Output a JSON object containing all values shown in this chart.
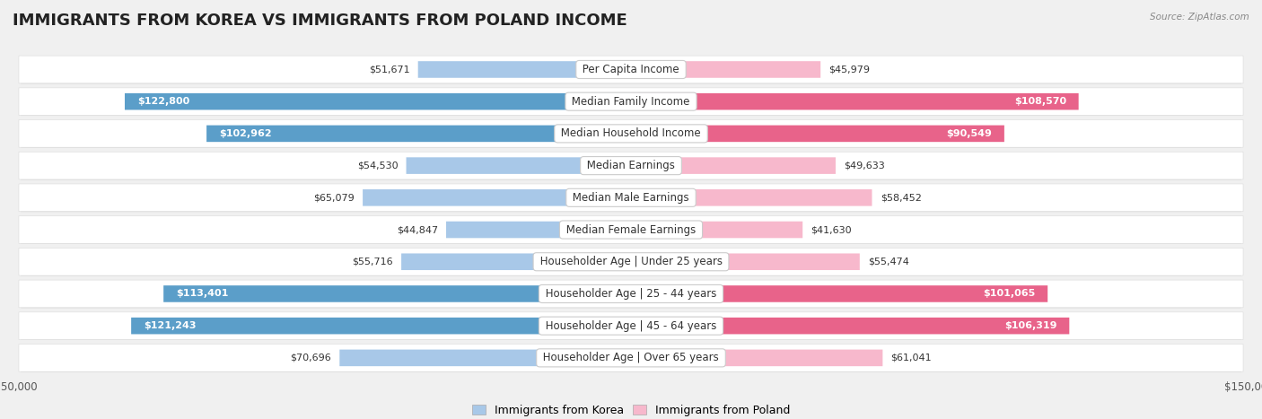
{
  "title": "IMMIGRANTS FROM KOREA VS IMMIGRANTS FROM POLAND INCOME",
  "source": "Source: ZipAtlas.com",
  "categories": [
    "Per Capita Income",
    "Median Family Income",
    "Median Household Income",
    "Median Earnings",
    "Median Male Earnings",
    "Median Female Earnings",
    "Householder Age | Under 25 years",
    "Householder Age | 25 - 44 years",
    "Householder Age | 45 - 64 years",
    "Householder Age | Over 65 years"
  ],
  "korea_values": [
    51671,
    122800,
    102962,
    54530,
    65079,
    44847,
    55716,
    113401,
    121243,
    70696
  ],
  "poland_values": [
    45979,
    108570,
    90549,
    49633,
    58452,
    41630,
    55474,
    101065,
    106319,
    61041
  ],
  "korea_color_light": "#a8c8e8",
  "korea_color_dark": "#5b9ec9",
  "poland_color_light": "#f7b8cc",
  "poland_color_dark": "#e8638a",
  "korea_label": "Immigrants from Korea",
  "poland_label": "Immigrants from Poland",
  "max_value": 150000,
  "high_threshold": 90000,
  "background_color": "#f0f0f0",
  "row_bg_color": "#ffffff",
  "title_fontsize": 13,
  "label_fontsize": 8.5,
  "value_fontsize": 8,
  "axis_label_fontsize": 8.5
}
